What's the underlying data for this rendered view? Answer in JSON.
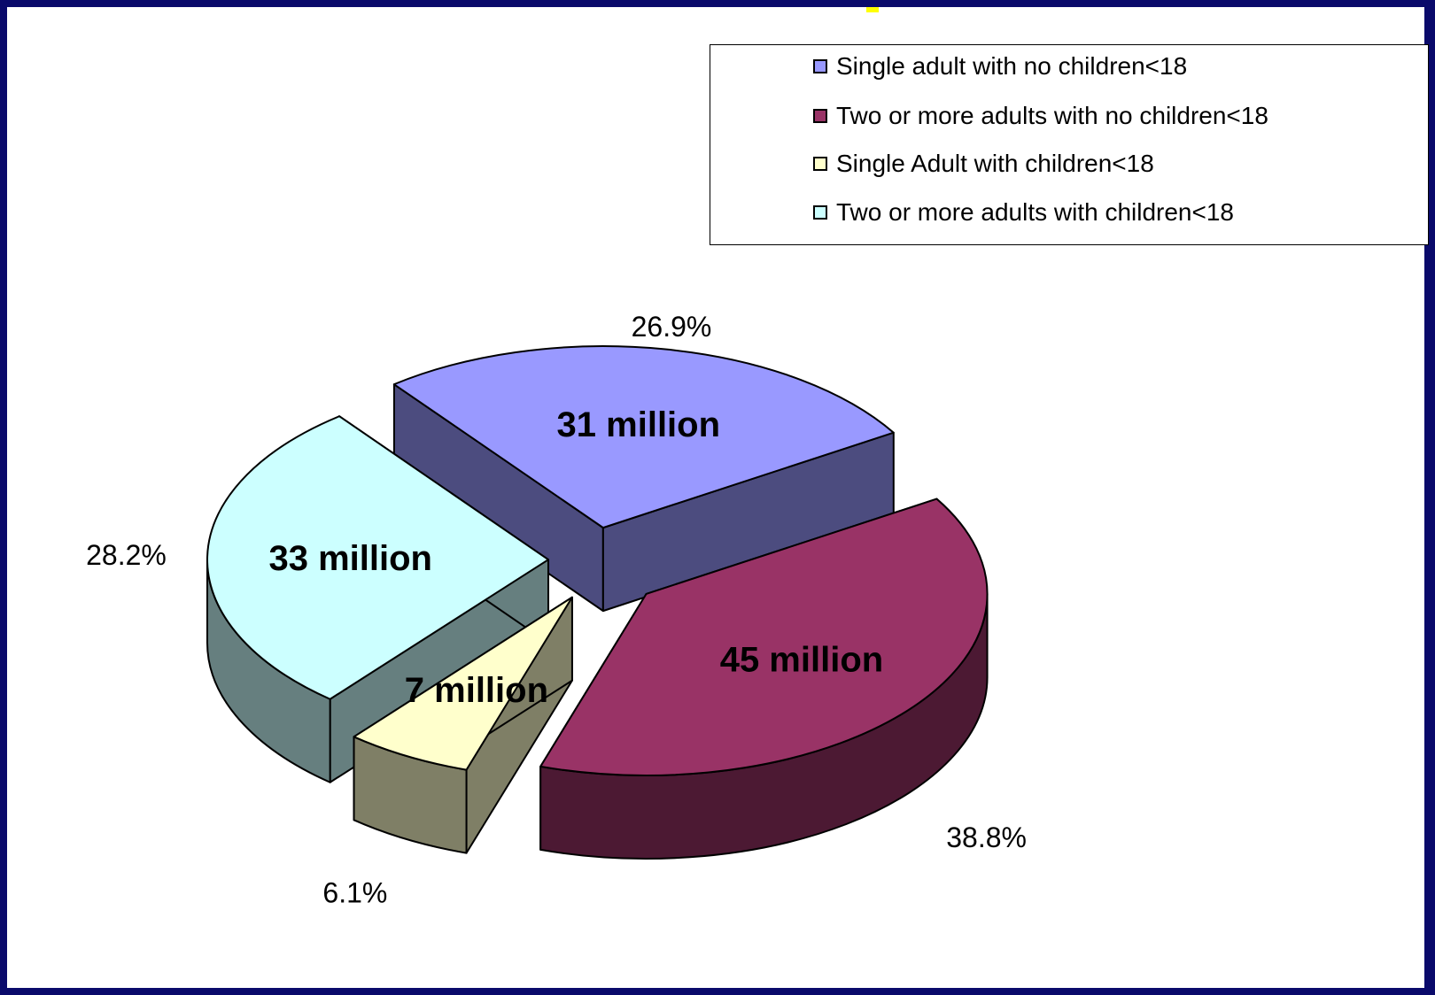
{
  "chart_data": {
    "type": "pie",
    "title": "",
    "legend_position": "top-right",
    "slices": [
      {
        "name": "Single adult with no children<18",
        "value": 31,
        "value_label": "31 million",
        "percent_label": "26.9%",
        "color": "#9999ff",
        "side_color": "#4c4c7f"
      },
      {
        "name": "Two or more adults with no children<18",
        "value": 45,
        "value_label": "45 million",
        "percent_label": "38.8%",
        "color": "#993366",
        "side_color": "#4c1933"
      },
      {
        "name": "Single Adult with children<18",
        "value": 7,
        "value_label": "7 million",
        "percent_label": "6.1%",
        "color": "#ffffcc",
        "side_color": "#7f7f66"
      },
      {
        "name": "Two or more adults with children<18",
        "value": 33,
        "value_label": "33 million",
        "percent_label": "28.2%",
        "color": "#ccffff",
        "side_color": "#667f7f"
      }
    ]
  }
}
